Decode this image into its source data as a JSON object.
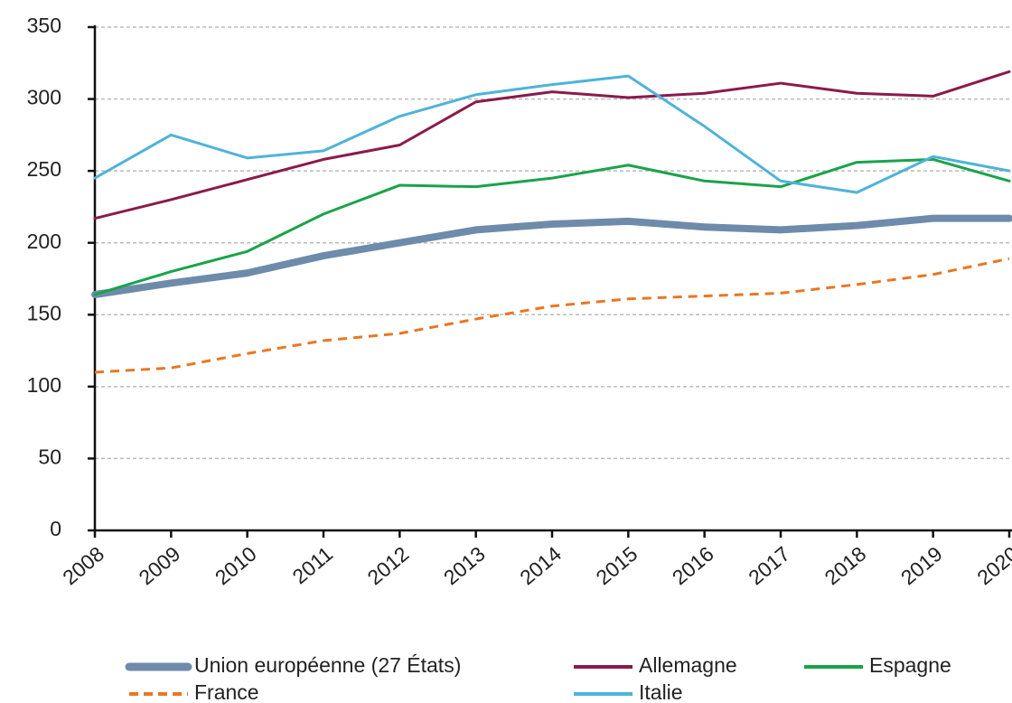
{
  "chart_data": {
    "type": "line",
    "categories": [
      "2008",
      "2009",
      "2010",
      "2011",
      "2012",
      "2013",
      "2014",
      "2015",
      "2016",
      "2017",
      "2018",
      "2019",
      "2020"
    ],
    "series": [
      {
        "name": "Union européenne (27 États)",
        "color": "#6e8bab",
        "values": [
          164,
          172,
          179,
          191,
          200,
          209,
          213,
          215,
          211,
          209,
          212,
          217,
          217
        ]
      },
      {
        "name": "Allemagne",
        "color": "#8b1a4a",
        "values": [
          217,
          230,
          244,
          258,
          268,
          298,
          305,
          301,
          304,
          311,
          304,
          302,
          319
        ]
      },
      {
        "name": "Espagne",
        "color": "#1aa34a",
        "values": [
          164,
          180,
          194,
          220,
          240,
          239,
          245,
          254,
          243,
          239,
          256,
          258,
          243
        ]
      },
      {
        "name": "France",
        "color": "#e87722",
        "dashed": true,
        "values": [
          110,
          113,
          123,
          132,
          137,
          147,
          156,
          161,
          163,
          165,
          171,
          178,
          189
        ]
      },
      {
        "name": "Italie",
        "color": "#4fb3d9",
        "values": [
          245,
          275,
          259,
          264,
          288,
          303,
          310,
          316,
          281,
          243,
          235,
          260,
          250
        ]
      }
    ],
    "ylim": [
      0,
      350
    ],
    "yticks": [
      0,
      50,
      100,
      150,
      200,
      250,
      300,
      350
    ],
    "grid": true
  }
}
